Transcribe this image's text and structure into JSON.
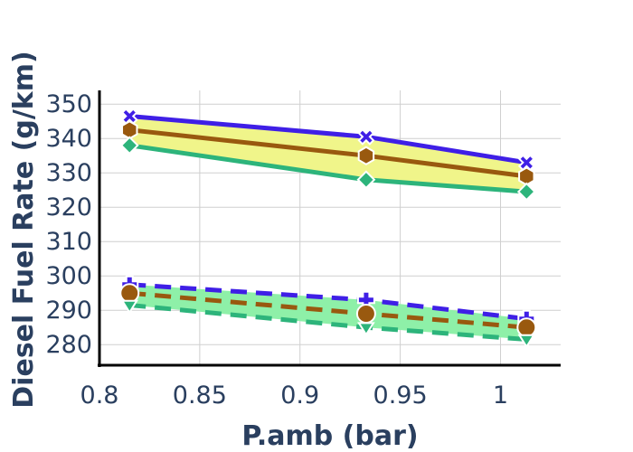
{
  "chart_data": {
    "type": "line",
    "title": "",
    "xlabel": "P.amb (bar)",
    "ylabel": "Diesel Fuel Rate (g/km)",
    "xlim": [
      0.8,
      1.03
    ],
    "ylim": [
      274,
      354
    ],
    "x_ticks": [
      0.8,
      0.85,
      0.9,
      0.95,
      1
    ],
    "x_tick_labels": [
      "0.8",
      "0.85",
      "0.9",
      "0.95",
      "1"
    ],
    "y_ticks": [
      280,
      290,
      300,
      310,
      320,
      330,
      340,
      350
    ],
    "y_tick_labels": [
      "280",
      "290",
      "300",
      "310",
      "320",
      "330",
      "340",
      "350"
    ],
    "grid": true,
    "legend": "none",
    "bands": [
      {
        "upper_series": 0,
        "lower_series": 2,
        "fill": "#f0f58a"
      },
      {
        "upper_series": 3,
        "lower_series": 5,
        "fill": "#8ef0a8"
      }
    ],
    "series": [
      {
        "x": [
          0.815,
          0.933,
          1.013
        ],
        "y": [
          346.5,
          340.5,
          333
        ],
        "color": "#3f1fe6",
        "dash": "solid",
        "marker": "x"
      },
      {
        "x": [
          0.815,
          0.933,
          1.013
        ],
        "y": [
          342.5,
          335,
          329
        ],
        "color": "#99590f",
        "dash": "solid",
        "marker": "hexagon"
      },
      {
        "x": [
          0.815,
          0.933,
          1.013
        ],
        "y": [
          338,
          328,
          324.5
        ],
        "color": "#2db47b",
        "dash": "solid",
        "marker": "diamond"
      },
      {
        "x": [
          0.815,
          0.933,
          1.013
        ],
        "y": [
          297.5,
          293,
          287.5
        ],
        "color": "#3f1fe6",
        "dash": "dash",
        "marker": "cross"
      },
      {
        "x": [
          0.815,
          0.933,
          1.013
        ],
        "y": [
          295,
          289,
          285
        ],
        "color": "#99590f",
        "dash": "dash",
        "marker": "circle"
      },
      {
        "x": [
          0.815,
          0.933,
          1.013
        ],
        "y": [
          291.5,
          285,
          281.5
        ],
        "color": "#2db47b",
        "dash": "dash",
        "marker": "triangle-down"
      }
    ]
  }
}
